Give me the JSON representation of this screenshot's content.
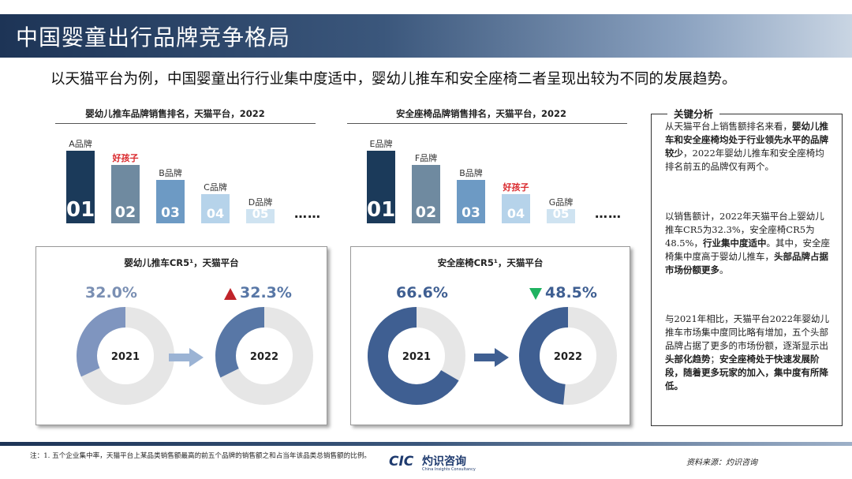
{
  "header": {
    "title": "中国婴童出行品牌竞争格局",
    "subtitle": "以天猫平台为例，中国婴童出行行业集中度适中，婴幼儿推车和安全座椅二者呈现出较为不同的发展趋势。"
  },
  "colors": {
    "rank1": "#1b3a5a",
    "rank2": "#6f8aa0",
    "rank3": "#6d9ac4",
    "rank4": "#b6d3ea",
    "rank5": "#cfe3f1",
    "donut_light": "#5877a6",
    "donut_dark": "#3f5f92",
    "donut_rest": "#e6e6e6",
    "up": "#c0242a",
    "down": "#1fb260"
  },
  "chart_data": [
    {
      "type": "bar",
      "title": "婴幼儿推车品牌销售排名，天猫平台，2022",
      "categories": [
        "A品牌",
        "好孩子",
        "B品牌",
        "C品牌",
        "D品牌"
      ],
      "ranks": [
        "01",
        "02",
        "03",
        "04",
        "05"
      ],
      "highlight": "好孩子",
      "values": [
        5,
        4,
        3,
        2,
        1
      ],
      "ellipsis": "……"
    },
    {
      "type": "bar",
      "title": "安全座椅品牌销售排名，天猫平台，2022",
      "categories": [
        "E品牌",
        "F品牌",
        "B品牌",
        "好孩子",
        "G品牌"
      ],
      "ranks": [
        "01",
        "02",
        "03",
        "04",
        "05"
      ],
      "highlight": "好孩子",
      "values": [
        5,
        4,
        3,
        2,
        1
      ],
      "ellipsis": "……"
    },
    {
      "type": "pie",
      "title": "婴幼儿推车CR5¹，天猫平台",
      "series": [
        {
          "name": "2021",
          "value": 32.0,
          "label": "32.0%"
        },
        {
          "name": "2022",
          "value": 32.3,
          "label": "32.3%",
          "trend": "up"
        }
      ]
    },
    {
      "type": "pie",
      "title": "安全座椅CR5¹，天猫平台",
      "series": [
        {
          "name": "2021",
          "value": 66.6,
          "label": "66.6%"
        },
        {
          "name": "2022",
          "value": 48.5,
          "label": "48.5%",
          "trend": "down"
        }
      ]
    }
  ],
  "sidebar": {
    "title": "关键分析",
    "p1_a": "从天猫平台上销售额排名来看，",
    "p1_b": "婴幼儿推车和安全座椅均处于行业领先水平的品牌较少",
    "p1_c": "，2022年婴幼儿推车和安全座椅均排名前五的品牌仅有两个。",
    "p2_a": "以销售额计，2022年天猫平台上婴幼儿推车CR5为32.3%，安全座椅CR5为48.5%，",
    "p2_b": "行业集中度适中",
    "p2_c": "。其中，安全座椅集中度高于婴幼儿推车，",
    "p2_d": "头部品牌占据市场份额更多",
    "p2_e": "。",
    "p3_a": "与2021年相比，天猫平台2022年婴幼儿推车市场集中度同比略有增加，五个头部品牌占据了更多的市场份额，逐渐显示出",
    "p3_b": "头部化趋势",
    "p3_c": "；",
    "p3_d": "安全座椅处于快速发展阶段，随着更多玩家的加入，集中度有所降低。"
  },
  "footer": {
    "note": "注：1. 五个企业集中率，天猫平台上某品类销售额最高的前五个品牌的销售额之和占当年该品类总销售额的比例。",
    "source": "资料来源：灼识咨询",
    "logo_mark": "CIC",
    "logo_cn": "灼识咨询",
    "logo_en": "China Insights Consultancy"
  }
}
